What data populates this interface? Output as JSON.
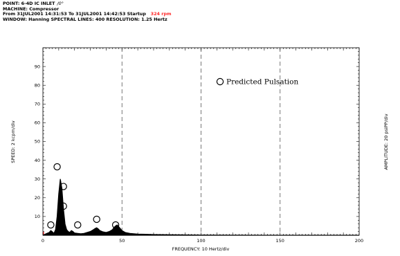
{
  "header": {
    "point_label": "POINT: 6-4D IC INLET",
    "point_angle": "/0°",
    "machine": "MACHINE: Compressor",
    "range_prefix": "From 31JUL2001 14:31:53 To 31JUL2001 14:42:53 Startup",
    "rpm": "324 rpm",
    "window": "WINDOW: Hanning  SPECTRAL LINES: 400  RESOLUTION: 1.25 Hertz"
  },
  "colors": {
    "rpm": "#ff2a2a",
    "spectrum": "#000000",
    "grid": "#555555"
  },
  "chart_data": {
    "type": "line",
    "xlabel": "FREQUENCY: 10 Hertz/div",
    "ylabel_left": "SPEED: 2 kcpm/div",
    "ylabel_right": "AMPLITUDE: 20 psiPP/div",
    "xlim": [
      0,
      200
    ],
    "ylim": [
      0,
      100
    ],
    "x_ticks": [
      "0",
      "50",
      "100",
      "150",
      "200"
    ],
    "y_ticks": [
      "10",
      "20",
      "30",
      "40",
      "50",
      "60",
      "70",
      "80",
      "90"
    ],
    "x_tick_values": [
      0,
      50,
      100,
      150,
      200
    ],
    "y_tick_values": [
      10,
      20,
      30,
      40,
      50,
      60,
      70,
      80,
      90
    ],
    "dashed_gridlines_x": [
      50,
      100,
      150
    ],
    "legend": {
      "label": "Predicted Pulsation",
      "marker": "open-circle",
      "placement": "top-right"
    },
    "spectrum": [
      [
        0,
        0
      ],
      [
        2,
        0.8
      ],
      [
        4,
        1.5
      ],
      [
        5,
        2.5
      ],
      [
        6,
        1.8
      ],
      [
        7,
        1
      ],
      [
        8,
        3
      ],
      [
        9,
        10
      ],
      [
        10,
        22
      ],
      [
        11,
        30
      ],
      [
        12,
        25
      ],
      [
        13,
        14
      ],
      [
        14,
        6
      ],
      [
        15,
        3
      ],
      [
        16,
        2
      ],
      [
        17,
        1.5
      ],
      [
        18,
        2.5
      ],
      [
        19,
        2
      ],
      [
        20,
        1.2
      ],
      [
        22,
        1
      ],
      [
        24,
        0.8
      ],
      [
        26,
        1
      ],
      [
        28,
        1.5
      ],
      [
        30,
        2
      ],
      [
        32,
        3
      ],
      [
        33,
        3.6
      ],
      [
        34,
        4
      ],
      [
        35,
        3.4
      ],
      [
        36,
        2.5
      ],
      [
        38,
        1.8
      ],
      [
        40,
        1.5
      ],
      [
        42,
        2
      ],
      [
        44,
        3
      ],
      [
        45,
        4.2
      ],
      [
        46,
        5
      ],
      [
        47,
        5.5
      ],
      [
        48,
        4.5
      ],
      [
        49,
        3.5
      ],
      [
        50,
        2.5
      ],
      [
        52,
        1.5
      ],
      [
        55,
        1
      ],
      [
        60,
        0.6
      ],
      [
        65,
        0.5
      ],
      [
        70,
        0.4
      ],
      [
        80,
        0.3
      ],
      [
        90,
        0.2
      ],
      [
        100,
        0.1
      ],
      [
        120,
        0.05
      ],
      [
        150,
        0
      ],
      [
        200,
        0
      ]
    ],
    "predicted_pulsation": [
      {
        "x": 5,
        "y": 5.5
      },
      {
        "x": 9,
        "y": 36.5
      },
      {
        "x": 13,
        "y": 26
      },
      {
        "x": 13,
        "y": 15.5
      },
      {
        "x": 22,
        "y": 5.5
      },
      {
        "x": 34,
        "y": 8.5
      },
      {
        "x": 46,
        "y": 5.5
      }
    ]
  }
}
